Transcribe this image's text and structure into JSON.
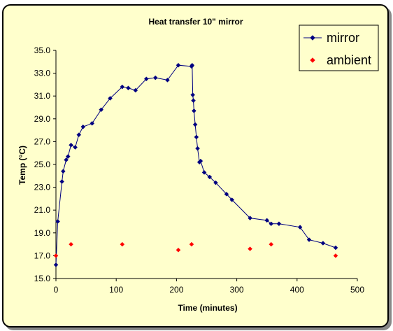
{
  "chart_data": {
    "type": "scatter",
    "title": "Heat transfer 10\" mirror",
    "xlabel": "Time (minutes)",
    "ylabel": "Temp (°C)",
    "xlim": [
      0,
      500
    ],
    "ylim": [
      15.0,
      35.0
    ],
    "x_ticks": [
      "0",
      "100",
      "200",
      "300",
      "400",
      "500"
    ],
    "y_ticks": [
      "15.0",
      "17.0",
      "19.0",
      "21.0",
      "23.0",
      "25.0",
      "27.0",
      "29.0",
      "31.0",
      "33.0",
      "35.0"
    ],
    "grid": false,
    "legend_position": "top-right",
    "series": [
      {
        "name": "mirror",
        "color": "#000080",
        "marker": "diamond",
        "line": true,
        "points": [
          [
            0,
            16.2
          ],
          [
            3,
            20.0
          ],
          [
            10,
            23.5
          ],
          [
            12,
            24.4
          ],
          [
            17,
            25.4
          ],
          [
            20,
            25.7
          ],
          [
            25,
            26.7
          ],
          [
            32,
            26.5
          ],
          [
            38,
            27.6
          ],
          [
            45,
            28.3
          ],
          [
            60,
            28.6
          ],
          [
            75,
            29.8
          ],
          [
            90,
            30.8
          ],
          [
            110,
            31.8
          ],
          [
            120,
            31.7
          ],
          [
            132,
            31.5
          ],
          [
            150,
            32.5
          ],
          [
            165,
            32.6
          ],
          [
            185,
            32.4
          ],
          [
            203,
            33.7
          ],
          [
            225,
            33.6
          ],
          [
            226,
            33.7
          ],
          [
            227,
            31.1
          ],
          [
            228,
            30.6
          ],
          [
            229,
            29.7
          ],
          [
            231,
            28.5
          ],
          [
            233,
            27.4
          ],
          [
            235,
            26.4
          ],
          [
            238,
            25.2
          ],
          [
            240,
            25.3
          ],
          [
            246,
            24.3
          ],
          [
            255,
            23.9
          ],
          [
            265,
            23.4
          ],
          [
            283,
            22.4
          ],
          [
            292,
            21.9
          ],
          [
            322,
            20.3
          ],
          [
            350,
            20.1
          ],
          [
            357,
            19.8
          ],
          [
            370,
            19.8
          ],
          [
            405,
            19.5
          ],
          [
            420,
            18.4
          ],
          [
            443,
            18.1
          ],
          [
            464,
            17.7
          ]
        ]
      },
      {
        "name": "ambient",
        "color": "#ff0000",
        "marker": "diamond",
        "line": false,
        "points": [
          [
            0,
            17.0
          ],
          [
            25,
            18.0
          ],
          [
            110,
            18.0
          ],
          [
            203,
            17.5
          ],
          [
            225,
            18.0
          ],
          [
            322,
            17.6
          ],
          [
            357,
            18.0
          ],
          [
            464,
            17.0
          ]
        ]
      }
    ]
  }
}
